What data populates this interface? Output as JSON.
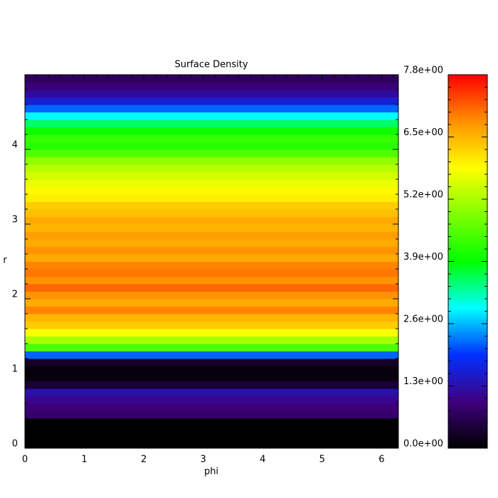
{
  "chart_data": {
    "type": "heatmap",
    "title": "Surface Density",
    "x_label": "phi",
    "y_label": "r",
    "xlim": [
      0,
      6.283
    ],
    "xticks": [
      0,
      1,
      2,
      3,
      4,
      5,
      6
    ],
    "ylim": [
      0,
      5
    ],
    "yticks": [
      0,
      1,
      2,
      3,
      4
    ],
    "y": [
      0.05,
      0.15,
      0.25,
      0.35,
      0.45,
      0.55,
      0.65,
      0.75,
      0.85,
      0.95,
      1.05,
      1.15,
      1.25,
      1.35,
      1.45,
      1.55,
      1.65,
      1.75,
      1.85,
      1.95,
      2.05,
      2.15,
      2.25,
      2.35,
      2.45,
      2.55,
      2.65,
      2.75,
      2.85,
      2.95,
      3.05,
      3.15,
      3.25,
      3.35,
      3.45,
      3.55,
      3.65,
      3.75,
      3.85,
      3.95,
      4.05,
      4.15,
      4.25,
      4.35,
      4.45,
      4.55,
      4.65,
      4.75,
      4.85,
      4.95
    ],
    "values": [
      0,
      0,
      0,
      0,
      0.8,
      0.9,
      1.1,
      1.3,
      0.4,
      0.1,
      0.1,
      0.3,
      2.2,
      4.5,
      5.2,
      5.8,
      6.3,
      6.5,
      6.9,
      6.6,
      6.8,
      7.1,
      6.8,
      7.0,
      6.9,
      6.6,
      6.8,
      6.6,
      6.7,
      6.5,
      6.6,
      6.4,
      6.3,
      6.0,
      5.9,
      5.7,
      5.5,
      5.3,
      5.0,
      4.5,
      4.2,
      4.3,
      4.0,
      3.5,
      2.9,
      2.2,
      1.6,
      1.2,
      0.9,
      0.7
    ],
    "clim": [
      0,
      7.8
    ],
    "cticks": [
      {
        "value": 0,
        "label": "0.0e+00"
      },
      {
        "value": 1.3,
        "label": "1.3e+00"
      },
      {
        "value": 2.6,
        "label": "2.6e+00"
      },
      {
        "value": 3.9,
        "label": "3.9e+00"
      },
      {
        "value": 5.2,
        "label": "5.2e+00"
      },
      {
        "value": 6.5,
        "label": "6.5e+00"
      },
      {
        "value": 7.8,
        "label": "7.8e+00"
      }
    ],
    "colormap": [
      "#000000",
      "#400080",
      "#0030ff",
      "#00ffff",
      "#00ff00",
      "#80ff00",
      "#ffff00",
      "#ff9000",
      "#ff0000"
    ]
  }
}
